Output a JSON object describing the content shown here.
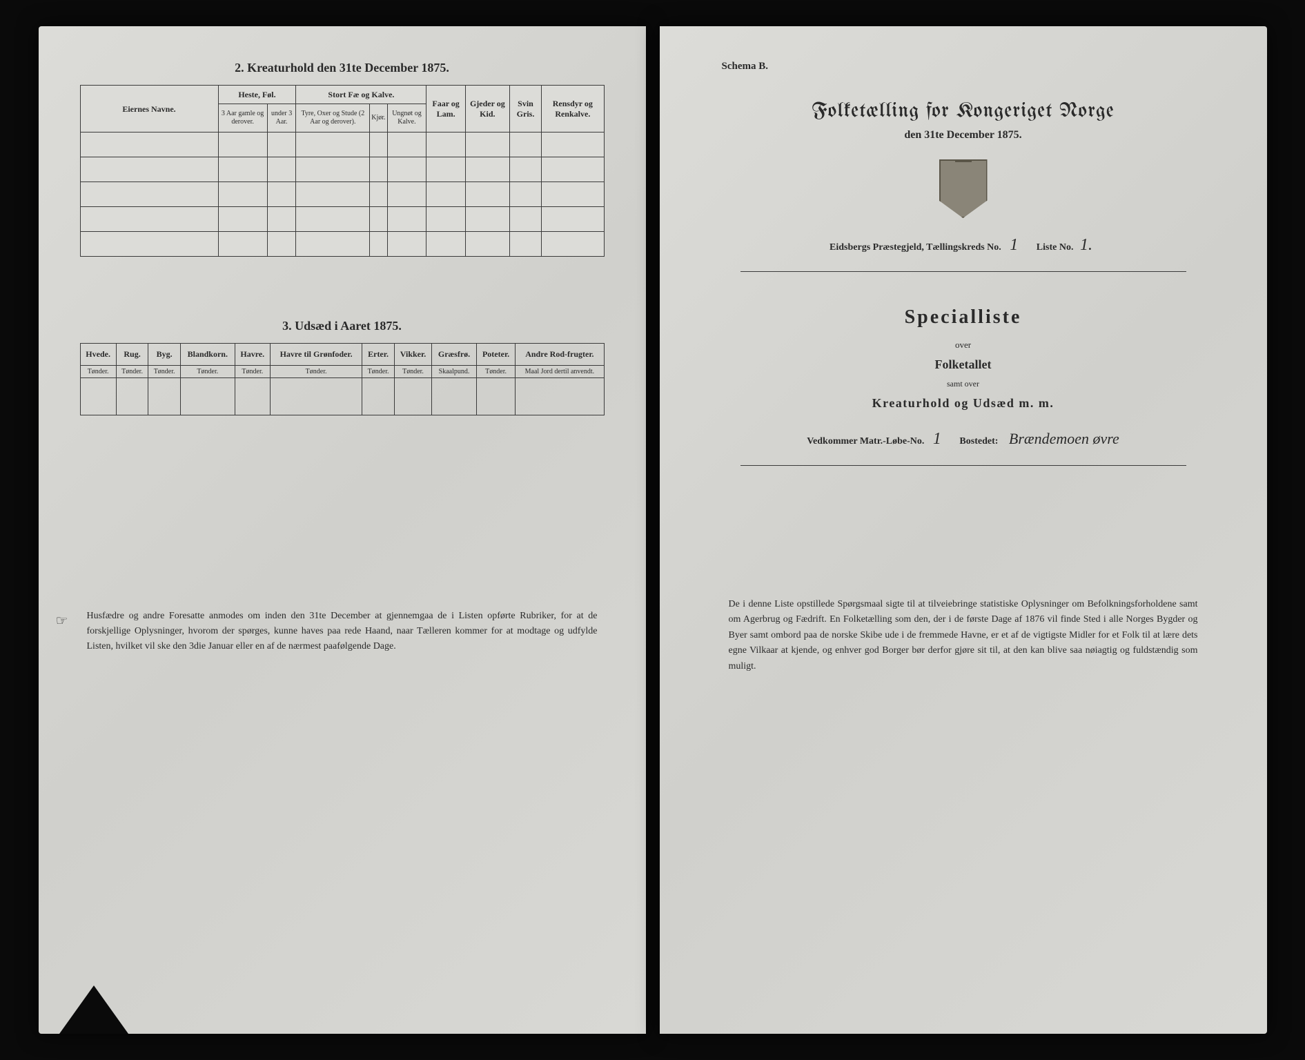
{
  "left": {
    "section2_heading": "2.  Kreaturhold den 31te December 1875.",
    "livestock": {
      "owner_header": "Eiernes Navne.",
      "group_heste": "Heste, Føl.",
      "group_stort": "Stort Fæ og Kalve.",
      "faar": "Faar og Lam.",
      "gjeder": "Gjeder og Kid.",
      "svin": "Svin Gris.",
      "rensdyr": "Rensdyr og Renkalve.",
      "sub_heste_1": "3 Aar gamle og derover.",
      "sub_heste_2": "under 3 Aar.",
      "sub_stort_1": "Tyre, Oxer og Stude (2 Aar og derover).",
      "sub_stort_2": "Kjør.",
      "sub_stort_3": "Ungnøt og Kalve."
    },
    "section3_heading": "3.  Udsæd i Aaret 1875.",
    "seed": {
      "cols": [
        "Hvede.",
        "Rug.",
        "Byg.",
        "Blandkorn.",
        "Havre.",
        "Havre til Grønfoder.",
        "Erter.",
        "Vikker.",
        "Græsfrø.",
        "Poteter.",
        "Andre Rod-frugter."
      ],
      "units": [
        "Tønder.",
        "Tønder.",
        "Tønder.",
        "Tønder.",
        "Tønder.",
        "Tønder.",
        "Tønder.",
        "Tønder.",
        "Skaalpund.",
        "Tønder.",
        "Maal Jord dertil anvendt."
      ]
    },
    "footer": "Husfædre og andre Foresatte anmodes om inden den 31te December at gjennemgaa de i Listen opførte Rubriker, for at de forskjellige Oplysninger, hvorom der spørges, kunne haves paa rede Haand, naar Tælleren kommer for at modtage og udfylde Listen, hvilket vil ske den 3die Januar eller en af de nærmest paafølgende Dage."
  },
  "right": {
    "schema": "Schema B.",
    "main_title": "Folketælling for Kongeriget Norge",
    "main_subtitle": "den 31te December 1875.",
    "district_label_1": "Eidsbergs Præstegjeld, Tællingskreds No.",
    "district_val_1": "1",
    "district_label_2": "Liste No.",
    "district_val_2": "1.",
    "specialliste": "Specialliste",
    "over": "over",
    "folketallet": "Folketallet",
    "samt_over": "samt over",
    "kreaturhold": "Kreaturhold og Udsæd m. m.",
    "vedkommer_1": "Vedkommer Matr.-Løbe-No.",
    "vedkommer_val": "1",
    "vedkommer_2": "Bostedet:",
    "bosted": "Brændemoen øvre",
    "footer": "De i denne Liste opstillede Spørgsmaal sigte til at tilveiebringe statistiske Oplysninger om Befolkningsforholdene samt om Agerbrug og Fædrift.  En Folketælling som den, der i de første Dage af 1876 vil finde Sted i alle Norges Bygder og Byer samt ombord paa de norske Skibe ude i de fremmede Havne, er et af de vigtigste Midler for et Folk til at lære dets egne Vilkaar at kjende, og enhver god Borger bør derfor gjøre sit til, at den kan blive saa nøiagtig og fuldstændig som muligt."
  }
}
